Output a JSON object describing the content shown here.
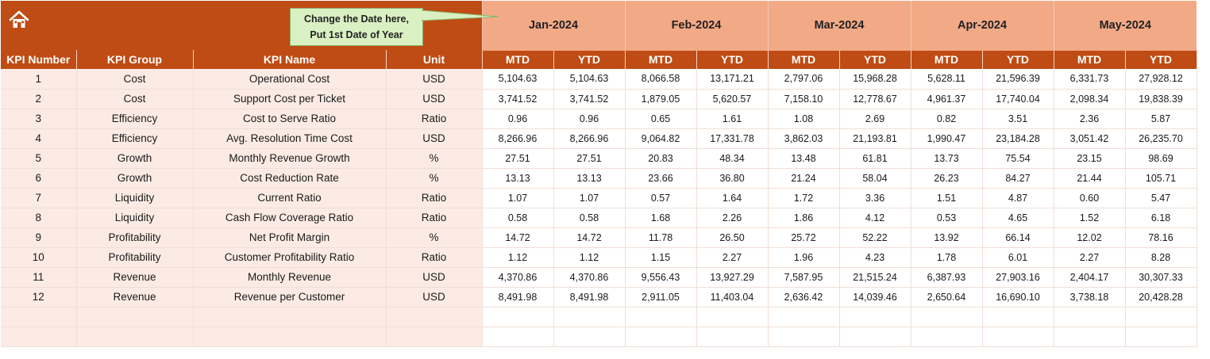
{
  "header": {
    "callout_line1": "Change the Date here,",
    "callout_line2": "Put 1st Date of Year",
    "months": [
      "Jan-2024",
      "Feb-2024",
      "Mar-2024",
      "Apr-2024",
      "May-2024"
    ]
  },
  "columns": {
    "kpi_number": "KPI Number",
    "kpi_group": "KPI Group",
    "kpi_name": "KPI Name",
    "unit": "Unit",
    "mtd": "MTD",
    "ytd": "YTD"
  },
  "rows": [
    {
      "no": "1",
      "group": "Cost",
      "name": "Operational Cost",
      "unit": "USD",
      "values": [
        "5,104.63",
        "5,104.63",
        "8,066.58",
        "13,171.21",
        "2,797.06",
        "15,968.28",
        "5,628.11",
        "21,596.39",
        "6,331.73",
        "27,928.12"
      ]
    },
    {
      "no": "2",
      "group": "Cost",
      "name": "Support Cost per Ticket",
      "unit": "USD",
      "values": [
        "3,741.52",
        "3,741.52",
        "1,879.05",
        "5,620.57",
        "7,158.10",
        "12,778.67",
        "4,961.37",
        "17,740.04",
        "2,098.34",
        "19,838.39"
      ]
    },
    {
      "no": "3",
      "group": "Efficiency",
      "name": "Cost to Serve Ratio",
      "unit": "Ratio",
      "values": [
        "0.96",
        "0.96",
        "0.65",
        "1.61",
        "1.08",
        "2.69",
        "0.82",
        "3.51",
        "2.36",
        "5.87"
      ]
    },
    {
      "no": "4",
      "group": "Efficiency",
      "name": "Avg. Resolution Time Cost",
      "unit": "USD",
      "values": [
        "8,266.96",
        "8,266.96",
        "9,064.82",
        "17,331.78",
        "3,862.03",
        "21,193.81",
        "1,990.47",
        "23,184.28",
        "3,051.42",
        "26,235.70"
      ]
    },
    {
      "no": "5",
      "group": "Growth",
      "name": "Monthly Revenue Growth",
      "unit": "%",
      "values": [
        "27.51",
        "27.51",
        "20.83",
        "48.34",
        "13.48",
        "61.81",
        "13.73",
        "75.54",
        "23.15",
        "98.69"
      ]
    },
    {
      "no": "6",
      "group": "Growth",
      "name": "Cost Reduction Rate",
      "unit": "%",
      "values": [
        "13.13",
        "13.13",
        "23.66",
        "36.80",
        "21.24",
        "58.04",
        "26.23",
        "84.27",
        "21.44",
        "105.71"
      ]
    },
    {
      "no": "7",
      "group": "Liquidity",
      "name": "Current Ratio",
      "unit": "Ratio",
      "values": [
        "1.07",
        "1.07",
        "0.57",
        "1.64",
        "1.72",
        "3.36",
        "1.51",
        "4.87",
        "0.60",
        "5.47"
      ]
    },
    {
      "no": "8",
      "group": "Liquidity",
      "name": "Cash Flow Coverage Ratio",
      "unit": "Ratio",
      "values": [
        "0.58",
        "0.58",
        "1.68",
        "2.26",
        "1.86",
        "4.12",
        "0.53",
        "4.65",
        "1.52",
        "6.18"
      ]
    },
    {
      "no": "9",
      "group": "Profitability",
      "name": "Net Profit Margin",
      "unit": "%",
      "values": [
        "14.72",
        "14.72",
        "11.78",
        "26.50",
        "25.72",
        "52.22",
        "13.92",
        "66.14",
        "12.02",
        "78.16"
      ]
    },
    {
      "no": "10",
      "group": "Profitability",
      "name": "Customer Profitability Ratio",
      "unit": "Ratio",
      "values": [
        "1.12",
        "1.12",
        "1.15",
        "2.27",
        "1.96",
        "4.23",
        "1.78",
        "6.01",
        "2.27",
        "8.28"
      ]
    },
    {
      "no": "11",
      "group": "Revenue",
      "name": "Monthly Revenue",
      "unit": "USD",
      "values": [
        "4,370.86",
        "4,370.86",
        "9,556.43",
        "13,927.29",
        "7,587.95",
        "21,515.24",
        "6,387.93",
        "27,903.16",
        "2,404.17",
        "30,307.33"
      ]
    },
    {
      "no": "12",
      "group": "Revenue",
      "name": "Revenue per Customer",
      "unit": "USD",
      "values": [
        "8,491.98",
        "8,491.98",
        "2,911.05",
        "11,403.04",
        "2,636.42",
        "14,039.46",
        "2,650.64",
        "16,690.10",
        "3,738.18",
        "20,428.28"
      ]
    }
  ],
  "empty_rows": 2,
  "icons": {
    "home": "home-icon"
  },
  "colors": {
    "header_dark": "#bf4c14",
    "header_light": "#f2a986",
    "row_tint": "#fcebe4",
    "callout": "#d9f0c2"
  }
}
